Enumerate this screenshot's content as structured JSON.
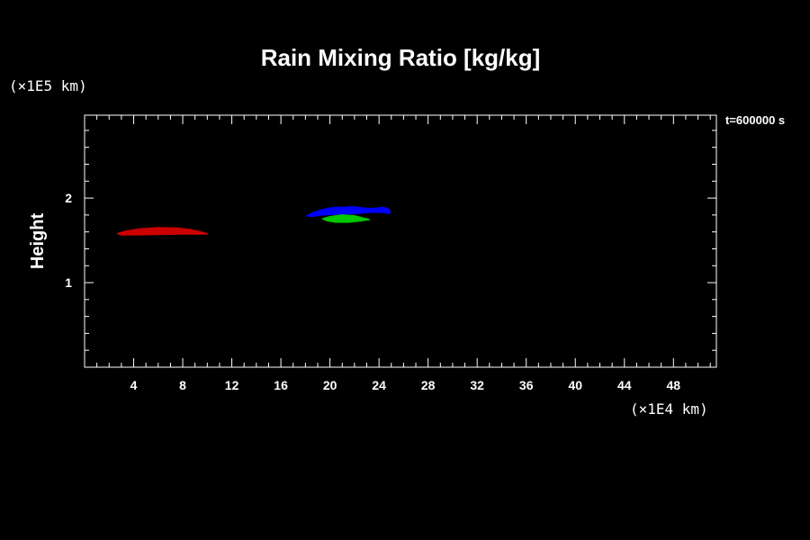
{
  "chart_data": {
    "type": "contour",
    "title": "Rain Mixing Ratio [kg/kg]",
    "xlabel": "",
    "ylabel": "Height",
    "x_unit": "(×1E4 km)",
    "y_unit": "(×1E5 km)",
    "time_label": "t=600000 s",
    "xlim": [
      0,
      51.5
    ],
    "ylim": [
      0,
      2.98
    ],
    "x_ticks": [
      4,
      8,
      12,
      16,
      20,
      24,
      28,
      32,
      36,
      40,
      44,
      48
    ],
    "x_tick_labels": [
      "4",
      "8",
      "12",
      "16",
      "20",
      "24",
      "28",
      "32",
      "36",
      "40",
      "44",
      "48"
    ],
    "x_minor_step": 1,
    "y_ticks": [
      1,
      2
    ],
    "y_tick_labels": [
      "1",
      "2"
    ],
    "y_minor_step": 0.2,
    "grid": false,
    "series": [
      {
        "color": "#cc0000",
        "points": [
          [
            2.7,
            1.58
          ],
          [
            3.4,
            1.61
          ],
          [
            4.5,
            1.635
          ],
          [
            6.0,
            1.65
          ],
          [
            7.5,
            1.645
          ],
          [
            8.7,
            1.625
          ],
          [
            9.6,
            1.595
          ],
          [
            10.0,
            1.575
          ],
          [
            8.0,
            1.575
          ],
          [
            6.0,
            1.57
          ],
          [
            4.0,
            1.565
          ],
          [
            3.0,
            1.565
          ]
        ]
      },
      {
        "color": "#0000ff",
        "points": [
          [
            18.1,
            1.79
          ],
          [
            18.6,
            1.825
          ],
          [
            19.2,
            1.855
          ],
          [
            19.9,
            1.88
          ],
          [
            20.5,
            1.89
          ],
          [
            21.2,
            1.89
          ],
          [
            21.8,
            1.9
          ],
          [
            22.5,
            1.885
          ],
          [
            23.2,
            1.875
          ],
          [
            23.8,
            1.88
          ],
          [
            24.3,
            1.89
          ],
          [
            24.8,
            1.87
          ],
          [
            24.9,
            1.82
          ],
          [
            24.4,
            1.83
          ],
          [
            23.7,
            1.835
          ],
          [
            23.0,
            1.83
          ],
          [
            22.3,
            1.82
          ],
          [
            21.6,
            1.815
          ],
          [
            20.8,
            1.81
          ],
          [
            20.0,
            1.805
          ],
          [
            19.3,
            1.8
          ],
          [
            18.6,
            1.785
          ]
        ]
      },
      {
        "color": "#00c800",
        "points": [
          [
            19.4,
            1.755
          ],
          [
            20.0,
            1.78
          ],
          [
            21.0,
            1.8
          ],
          [
            22.0,
            1.79
          ],
          [
            22.8,
            1.76
          ],
          [
            23.2,
            1.745
          ],
          [
            22.5,
            1.73
          ],
          [
            21.5,
            1.715
          ],
          [
            20.5,
            1.715
          ],
          [
            19.8,
            1.73
          ]
        ]
      }
    ]
  }
}
